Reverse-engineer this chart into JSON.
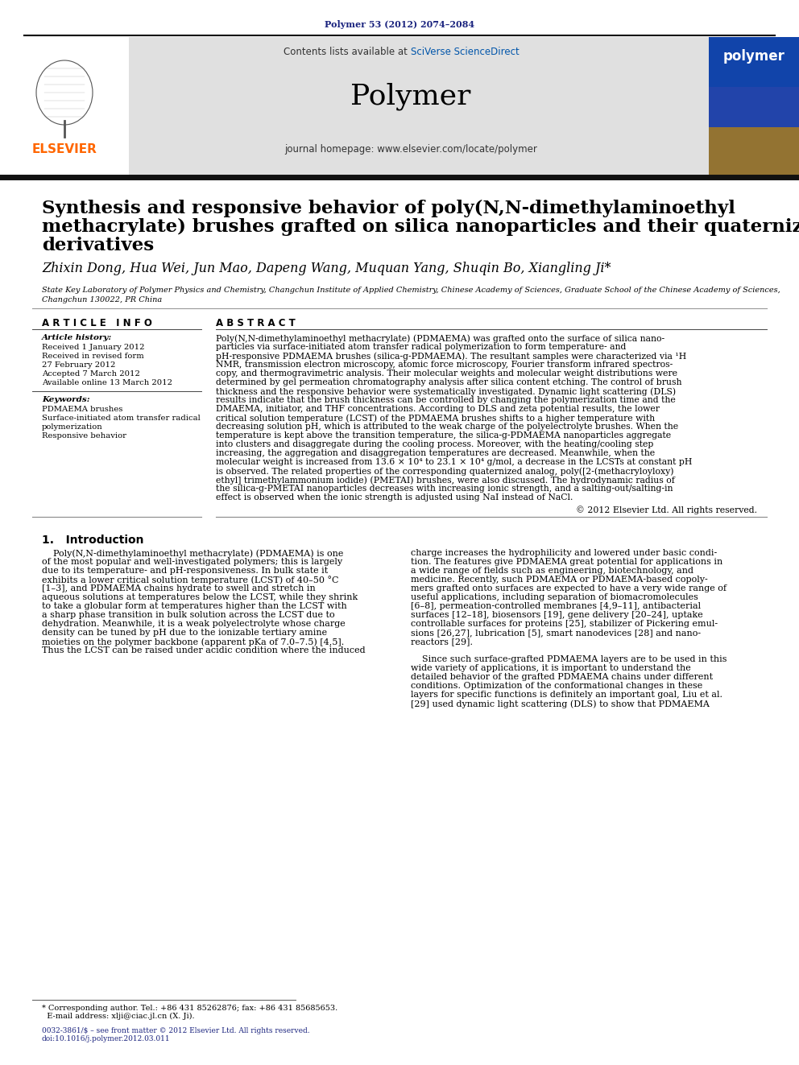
{
  "page_bg": "#ffffff",
  "top_journal_ref": "Polymer 53 (2012) 2074–2084",
  "top_journal_ref_color": "#1a237e",
  "header_bg": "#e0e0e0",
  "header_text1": "Contents lists available at ",
  "header_sciverse": "SciVerse ScienceDirect",
  "header_sciverse_color": "#0055aa",
  "header_journal_name": "Polymer",
  "header_homepage_prefix": "journal homepage: ",
  "header_homepage_url": "www.elsevier.com/locate/polymer",
  "divider_thick_color": "#111111",
  "title_line1": "Synthesis and responsive behavior of poly(N,N-dimethylaminoethyl",
  "title_line2": "methacrylate) brushes grafted on silica nanoparticles and their quaternized",
  "title_line3": "derivatives",
  "title_font_size": 16.5,
  "title_color": "#000000",
  "authors": "Zhixin Dong, Hua Wei, Jun Mao, Dapeng Wang, Muquan Yang, Shuqin Bo, Xiangling Ji*",
  "authors_font_size": 11.5,
  "affiliation_line1": "State Key Laboratory of Polymer Physics and Chemistry, Changchun Institute of Applied Chemistry, Chinese Academy of Sciences, Graduate School of the Chinese Academy of Sciences,",
  "affiliation_line2": "Changchun 130022, PR China",
  "affiliation_font_size": 7.0,
  "article_info_title": "A R T I C L E   I N F O",
  "article_history_label": "Article history:",
  "article_history_entries": [
    "Received 1 January 2012",
    "Received in revised form",
    "27 February 2012",
    "Accepted 7 March 2012",
    "Available online 13 March 2012"
  ],
  "keywords_label": "Keywords:",
  "keywords_entries": [
    "PDMAEMA brushes",
    "Surface-initiated atom transfer radical",
    "polymerization",
    "Responsive behavior"
  ],
  "abstract_title": "A B S T R A C T",
  "abstract_lines": [
    "Poly(N,N-dimethylaminoethyl methacrylate) (PDMAEMA) was grafted onto the surface of silica nano-",
    "particles via surface-initiated atom transfer radical polymerization to form temperature- and",
    "pH-responsive PDMAEMA brushes (silica-g-PDMAEMA). The resultant samples were characterized via ¹H",
    "NMR, transmission electron microscopy, atomic force microscopy, Fourier transform infrared spectros-",
    "copy, and thermogravimetric analysis. Their molecular weights and molecular weight distributions were",
    "determined by gel permeation chromatography analysis after silica content etching. The control of brush",
    "thickness and the responsive behavior were systematically investigated. Dynamic light scattering (DLS)",
    "results indicate that the brush thickness can be controlled by changing the polymerization time and the",
    "DMAEMA, initiator, and THF concentrations. According to DLS and zeta potential results, the lower",
    "critical solution temperature (LCST) of the PDMAEMA brushes shifts to a higher temperature with",
    "decreasing solution pH, which is attributed to the weak charge of the polyelectrolyte brushes. When the",
    "temperature is kept above the transition temperature, the silica-g-PDMAEMA nanoparticles aggregate",
    "into clusters and disaggregate during the cooling process. Moreover, with the heating/cooling step",
    "increasing, the aggregation and disaggregation temperatures are decreased. Meanwhile, when the",
    "molecular weight is increased from 13.6 × 10⁴ to 23.1 × 10⁴ g/mol, a decrease in the LCSTs at constant pH",
    "is observed. The related properties of the corresponding quaternized analog, poly([2-(methacryloyloxy)",
    "ethyl] trimethylammonium iodide) (PMETAI) brushes, were also discussed. The hydrodynamic radius of",
    "the silica-g-PMETAI nanoparticles decreases with increasing ionic strength, and a salting-out/salting-in",
    "effect is observed when the ionic strength is adjusted using NaI instead of NaCl."
  ],
  "copyright_text": "© 2012 Elsevier Ltd. All rights reserved.",
  "abstract_font_size": 7.8,
  "intro_section_title": "1.   Introduction",
  "intro_section_font_size": 10,
  "intro_col1_lines": [
    "    Poly(N,N-dimethylaminoethyl methacrylate) (PDMAEMA) is one",
    "of the most popular and well-investigated polymers; this is largely",
    "due to its temperature- and pH-responsiveness. In bulk state it",
    "exhibits a lower critical solution temperature (LCST) of 40–50 °C",
    "[1–3], and PDMAEMA chains hydrate to swell and stretch in",
    "aqueous solutions at temperatures below the LCST, while they shrink",
    "to take a globular form at temperatures higher than the LCST with",
    "a sharp phase transition in bulk solution across the LCST due to",
    "dehydration. Meanwhile, it is a weak polyelectrolyte whose charge",
    "density can be tuned by pH due to the ionizable tertiary amine",
    "moieties on the polymer backbone (apparent pKa of 7.0–7.5) [4,5].",
    "Thus the LCST can be raised under acidic condition where the induced"
  ],
  "intro_col2_lines": [
    "charge increases the hydrophilicity and lowered under basic condi-",
    "tion. The features give PDMAEMA great potential for applications in",
    "a wide range of fields such as engineering, biotechnology, and",
    "medicine. Recently, such PDMAEMA or PDMAEMA-based copoly-",
    "mers grafted onto surfaces are expected to have a very wide range of",
    "useful applications, including separation of biomacromolecules",
    "[6–8], permeation-controlled membranes [4,9–11], antibacterial",
    "surfaces [12–18], biosensors [19], gene delivery [20–24], uptake",
    "controllable surfaces for proteins [25], stabilizer of Pickering emul-",
    "sions [26,27], lubrication [5], smart nanodevices [28] and nano-",
    "reactors [29].",
    "",
    "    Since such surface-grafted PDMAEMA layers are to be used in this",
    "wide variety of applications, it is important to understand the",
    "detailed behavior of the grafted PDMAEMA chains under different",
    "conditions. Optimization of the conformational changes in these",
    "layers for specific functions is definitely an important goal, Liu et al.",
    "[29] used dynamic light scattering (DLS) to show that PDMAEMA"
  ],
  "intro_font_size": 8.0,
  "footnote_line1": "* Corresponding author. Tel.: +86 431 85262876; fax: +86 431 85685653.",
  "footnote_line2": "  E-mail address: xlji@ciac.jl.cn (X. Ji).",
  "footnote_font_size": 7.0,
  "issn_line1": "0032-3861/$ – see front matter © 2012 Elsevier Ltd. All rights reserved.",
  "issn_line2": "doi:10.1016/j.polymer.2012.03.011",
  "issn_font_size": 6.5,
  "issn_color": "#1a237e",
  "elsevier_logo_color": "#FF6600",
  "polymer_cover_bg": "#1144aa"
}
